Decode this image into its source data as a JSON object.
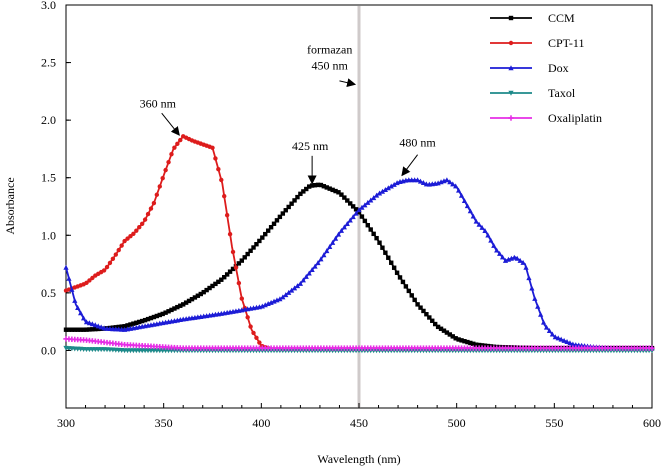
{
  "chart_data": {
    "type": "line",
    "title": "",
    "xlabel": "Wavelength (nm)",
    "ylabel": "Absorbance",
    "xlim": [
      300,
      600
    ],
    "ylim": [
      -0.5,
      3.0
    ],
    "xticks": [
      300,
      350,
      400,
      450,
      500,
      550,
      600
    ],
    "yticks": [
      0.0,
      0.5,
      1.0,
      1.5,
      2.0,
      2.5,
      3.0
    ],
    "ytick_labels": [
      "0.0",
      "0.5",
      "1.0",
      "1.5",
      "2.0",
      "2.5",
      "3.0"
    ],
    "legend_position": "top-right",
    "series": [
      {
        "name": "CCM",
        "color": "#000000",
        "marker": "square",
        "x": [
          300,
          310,
          320,
          330,
          340,
          350,
          360,
          370,
          380,
          390,
          400,
          410,
          420,
          425,
          430,
          440,
          450,
          460,
          470,
          480,
          490,
          500,
          510,
          520,
          540,
          560,
          580,
          600
        ],
        "y": [
          0.18,
          0.18,
          0.19,
          0.21,
          0.26,
          0.32,
          0.4,
          0.5,
          0.62,
          0.78,
          0.97,
          1.17,
          1.36,
          1.43,
          1.44,
          1.37,
          1.2,
          0.95,
          0.66,
          0.4,
          0.21,
          0.1,
          0.05,
          0.03,
          0.02,
          0.02,
          0.02,
          0.02
        ]
      },
      {
        "name": "CPT-11",
        "color": "#dd1c1c",
        "marker": "circle",
        "x": [
          300,
          305,
          310,
          315,
          320,
          325,
          330,
          335,
          340,
          345,
          350,
          355,
          360,
          365,
          370,
          375,
          380,
          385,
          390,
          395,
          400,
          405,
          410,
          420,
          440,
          460,
          500,
          550,
          600
        ],
        "y": [
          0.52,
          0.55,
          0.58,
          0.65,
          0.7,
          0.82,
          0.95,
          1.02,
          1.12,
          1.28,
          1.52,
          1.75,
          1.86,
          1.82,
          1.79,
          1.76,
          1.45,
          0.9,
          0.45,
          0.18,
          0.04,
          0.01,
          0.01,
          0.01,
          0.01,
          0.01,
          0.01,
          0.01,
          0.01
        ]
      },
      {
        "name": "Dox",
        "color": "#1c1cd6",
        "marker": "triangle-up",
        "x": [
          300,
          305,
          310,
          320,
          330,
          340,
          360,
          380,
          400,
          410,
          420,
          430,
          440,
          450,
          460,
          470,
          475,
          480,
          485,
          490,
          495,
          500,
          505,
          510,
          515,
          520,
          525,
          530,
          535,
          540,
          545,
          550,
          560,
          570,
          580,
          600
        ],
        "y": [
          0.72,
          0.4,
          0.25,
          0.19,
          0.18,
          0.21,
          0.27,
          0.32,
          0.38,
          0.45,
          0.58,
          0.78,
          1.02,
          1.22,
          1.36,
          1.46,
          1.48,
          1.48,
          1.44,
          1.45,
          1.48,
          1.42,
          1.27,
          1.12,
          1.03,
          0.88,
          0.78,
          0.81,
          0.75,
          0.45,
          0.22,
          0.12,
          0.05,
          0.03,
          0.02,
          0.02
        ]
      },
      {
        "name": "Taxol",
        "color": "#1d8a8a",
        "marker": "triangle-down",
        "x": [
          300,
          310,
          320,
          330,
          340,
          360,
          400,
          450,
          500,
          550,
          600
        ],
        "y": [
          0.02,
          0.01,
          0.01,
          0.0,
          0.0,
          0.0,
          0.0,
          0.0,
          0.0,
          0.0,
          0.0
        ]
      },
      {
        "name": "Oxaliplatin",
        "color": "#e62ee6",
        "marker": "star",
        "x": [
          300,
          310,
          320,
          330,
          340,
          350,
          360,
          380,
          400,
          450,
          500,
          550,
          600
        ],
        "y": [
          0.1,
          0.09,
          0.07,
          0.05,
          0.04,
          0.03,
          0.02,
          0.02,
          0.02,
          0.02,
          0.02,
          0.02,
          0.02
        ]
      }
    ],
    "reference_line": {
      "x": 450,
      "color": "#cfcaca"
    },
    "annotations": [
      {
        "id": "formazan",
        "lines": [
          "formazan",
          "450 nm"
        ],
        "text_x": 435,
        "text_y": 2.58,
        "arrow_from": [
          440,
          2.48
        ],
        "arrow_to": [
          448,
          2.31
        ]
      },
      {
        "id": "cpt11-peak",
        "lines": [
          "360 nm"
        ],
        "text_x": 347,
        "text_y": 2.11,
        "arrow_from": [
          349,
          2.06
        ],
        "arrow_to": [
          358,
          1.87
        ]
      },
      {
        "id": "ccm-peak",
        "lines": [
          "425 nm"
        ],
        "text_x": 425,
        "text_y": 1.74,
        "arrow_from": [
          426,
          1.69
        ],
        "arrow_to": [
          426,
          1.45
        ]
      },
      {
        "id": "dox-peak",
        "lines": [
          "480 nm"
        ],
        "text_x": 480,
        "text_y": 1.77,
        "arrow_from": [
          480,
          1.7
        ],
        "arrow_to": [
          472,
          1.52
        ]
      }
    ]
  }
}
